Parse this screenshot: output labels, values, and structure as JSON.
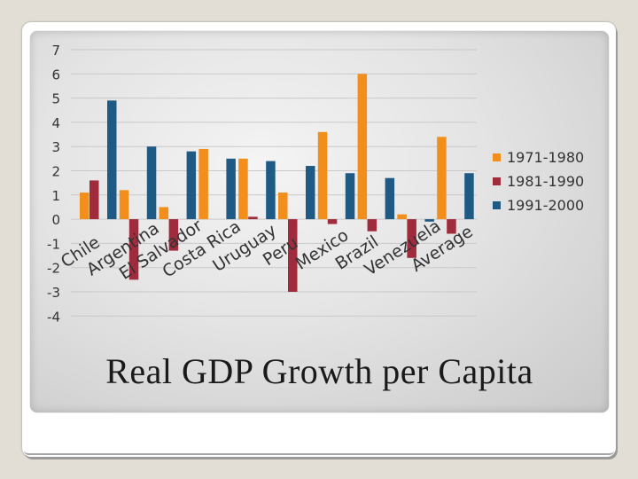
{
  "slide": {
    "title": "Real GDP Growth per Capita"
  },
  "chart_data": {
    "type": "bar",
    "categories": [
      "Chile",
      "Argentina",
      "El Salvador",
      "Costa Rica",
      "Uruguay",
      "Peru",
      "Mexico",
      "Brazil",
      "Venezuela",
      "Average"
    ],
    "series": [
      {
        "name": "1971-1980",
        "color": "#f28e1c",
        "values": [
          1.1,
          1.2,
          0.5,
          2.9,
          2.5,
          1.1,
          3.6,
          6.0,
          0.2,
          3.4
        ]
      },
      {
        "name": "1981-1990",
        "color": "#a02b3c",
        "values": [
          1.6,
          -2.5,
          -1.3,
          0.0,
          0.1,
          -3.0,
          -0.2,
          -0.5,
          -1.6,
          -0.6
        ]
      },
      {
        "name": "1991-2000",
        "color": "#1f5a84",
        "values": [
          4.9,
          3.0,
          2.8,
          2.5,
          2.4,
          2.2,
          1.9,
          1.7,
          -0.1,
          1.9
        ]
      }
    ],
    "ylim": [
      -4,
      7
    ],
    "yticks": [
      7,
      6,
      5,
      4,
      3,
      2,
      1,
      0,
      -1,
      -2,
      -3,
      -4
    ],
    "grid": true,
    "legend_position": "right",
    "title": "",
    "xlabel": "",
    "ylabel": ""
  }
}
